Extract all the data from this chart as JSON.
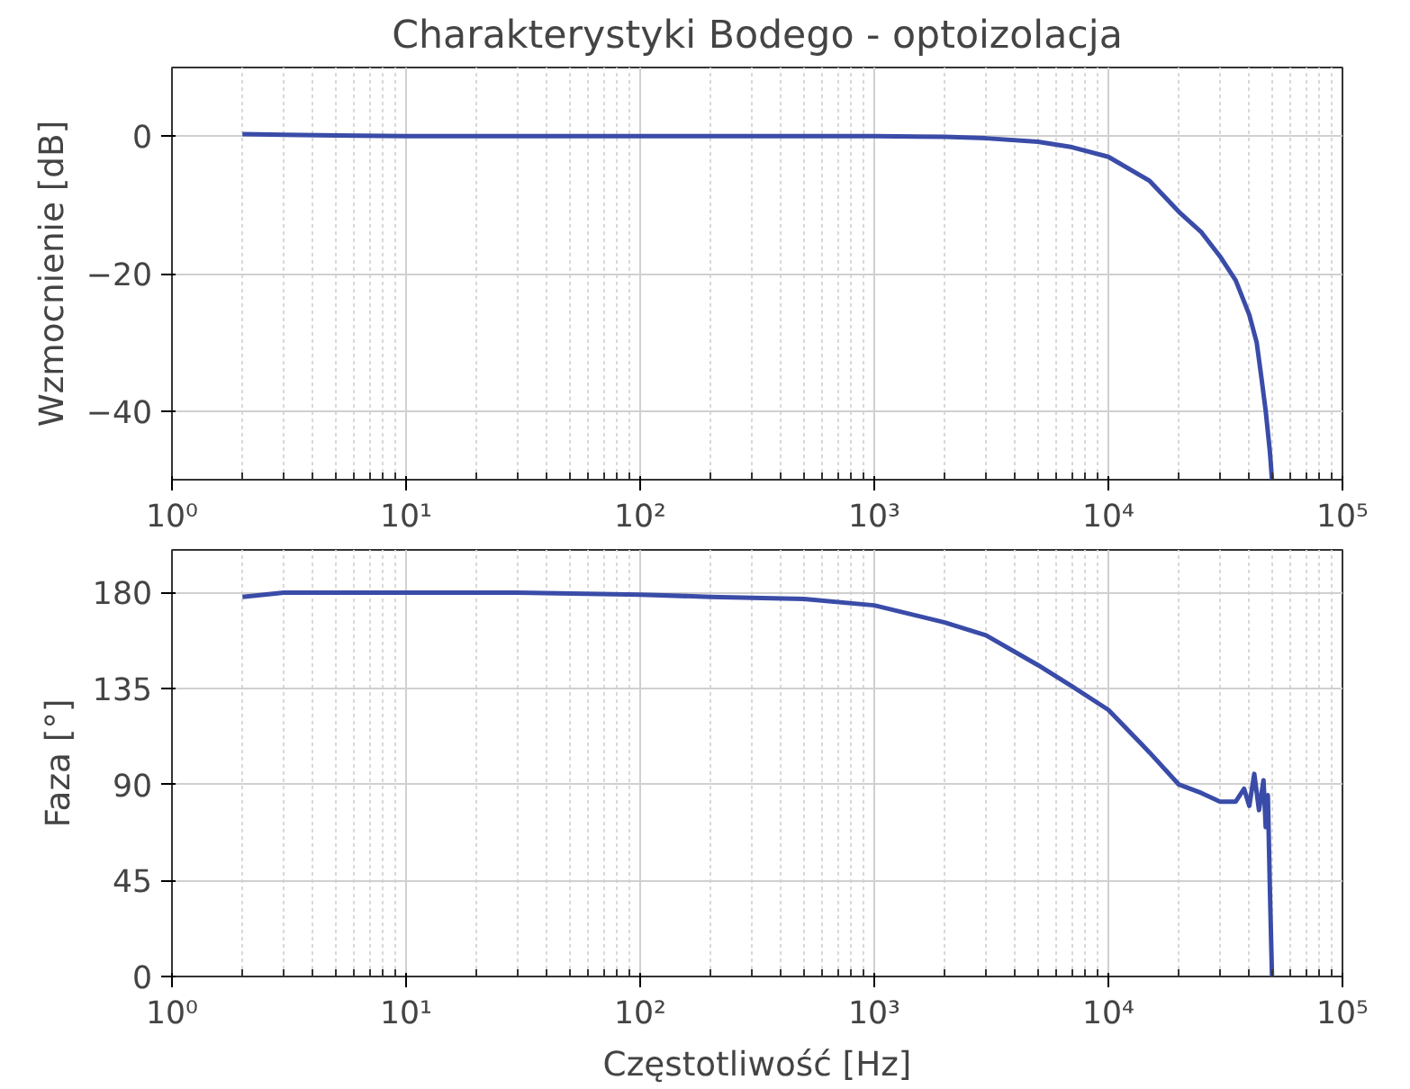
{
  "chart_data": [
    {
      "type": "line",
      "title": "Charakterystyki Bodego - optoizolacja",
      "ylabel": "Wzmocnienie [dB]",
      "log": "x",
      "grid": true,
      "xlim": [
        1,
        100000
      ],
      "xticks": [
        {
          "value": 1,
          "label": "10⁰"
        },
        {
          "value": 10,
          "label": "10¹"
        },
        {
          "value": 100,
          "label": "10²"
        },
        {
          "value": 1000,
          "label": "10³"
        },
        {
          "value": 10000,
          "label": "10⁴"
        },
        {
          "value": 100000,
          "label": "10⁵"
        }
      ],
      "ylim": [
        -50,
        10
      ],
      "yticks": [
        -40,
        -20,
        0
      ],
      "series": [
        {
          "color": "#3a4ca8",
          "x": [
            2,
            3,
            5,
            10,
            20,
            50,
            100,
            200,
            500,
            1000,
            2000,
            3000,
            5000,
            7000,
            10000,
            15000,
            20000,
            25000,
            30000,
            35000,
            40000,
            43000,
            45000,
            47000,
            49000,
            50000
          ],
          "values": [
            0.3,
            0.2,
            0.1,
            0,
            0,
            0,
            0,
            0,
            0,
            0,
            -0.1,
            -0.3,
            -0.8,
            -1.6,
            -3,
            -6.5,
            -11,
            -14,
            -17.5,
            -21,
            -26,
            -30,
            -35,
            -40,
            -46,
            -50
          ]
        }
      ]
    },
    {
      "type": "line",
      "xlabel": "Częstotliwość [Hz]",
      "ylabel": "Faza [°]",
      "log": "x",
      "grid": true,
      "xlim": [
        1,
        100000
      ],
      "xticks": [
        {
          "value": 1,
          "label": "10⁰"
        },
        {
          "value": 10,
          "label": "10¹"
        },
        {
          "value": 100,
          "label": "10²"
        },
        {
          "value": 1000,
          "label": "10³"
        },
        {
          "value": 10000,
          "label": "10⁴"
        },
        {
          "value": 100000,
          "label": "10⁵"
        }
      ],
      "ylim": [
        0,
        200
      ],
      "yticks": [
        0,
        45,
        90,
        135,
        180
      ],
      "series": [
        {
          "color": "#3a4ca8",
          "x": [
            2,
            3,
            4,
            10,
            30,
            100,
            200,
            500,
            1000,
            2000,
            3000,
            5000,
            7000,
            10000,
            15000,
            20000,
            25000,
            30000,
            35000,
            38000,
            40000,
            42000,
            44000,
            46000,
            47000,
            48000,
            49000,
            50000
          ],
          "values": [
            178,
            180,
            180,
            180,
            180,
            179,
            178,
            177,
            174,
            166,
            160,
            146,
            136,
            125,
            105,
            90,
            86,
            82,
            82,
            88,
            80,
            95,
            78,
            92,
            70,
            85,
            40,
            0
          ]
        }
      ]
    }
  ]
}
